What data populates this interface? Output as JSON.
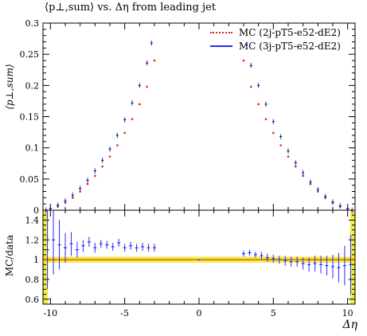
{
  "chart_data": [
    {
      "type": "scatter",
      "title": "⟨p⊥,sum⟩ vs. Δη from leading jet",
      "ylabel": "⟨p⊥,sum⟩",
      "xlabel": "",
      "xlim": [
        -10.5,
        10.5
      ],
      "ylim": [
        0,
        0.3
      ],
      "x_ticks": [
        -10,
        -5,
        0,
        5,
        10
      ],
      "y_ticks": [
        "0",
        "0.05",
        "0.1",
        "0.15",
        "0.2",
        "0.25",
        "0.3"
      ],
      "legend": {
        "placement": "top-right"
      },
      "series": [
        {
          "name": "MC (2j-pT5-e52-dE2)",
          "color": "#e41a1c",
          "style": "dotted",
          "x": [
            -10.3,
            -10.0,
            -9.5,
            -9.0,
            -8.5,
            -8.0,
            -7.5,
            -7.0,
            -6.5,
            -6.0,
            -5.5,
            -5.0,
            -4.5,
            -4.0,
            -3.5,
            -3.0,
            3.0,
            3.5,
            4.0,
            4.5,
            5.0,
            5.5,
            6.0,
            6.5,
            7.0,
            7.5,
            8.0,
            8.5,
            9.0,
            9.5,
            10.0,
            10.3
          ],
          "y": [
            0.0,
            0.002,
            0.006,
            0.012,
            0.02,
            0.03,
            0.042,
            0.055,
            0.07,
            0.086,
            0.104,
            0.124,
            0.146,
            0.17,
            0.198,
            0.24,
            0.24,
            0.198,
            0.17,
            0.146,
            0.124,
            0.104,
            0.086,
            0.07,
            0.055,
            0.042,
            0.03,
            0.02,
            0.012,
            0.006,
            0.002,
            0.0
          ]
        },
        {
          "name": "MC (3j-pT5-e52-dE2)",
          "color": "#2b2bff",
          "style": "errorbars",
          "x": [
            -10.3,
            -10.0,
            -9.5,
            -9.0,
            -8.5,
            -8.0,
            -7.5,
            -7.0,
            -6.5,
            -6.0,
            -5.5,
            -5.0,
            -4.5,
            -4.0,
            -3.5,
            -3.2,
            3.2,
            3.5,
            4.0,
            4.5,
            5.0,
            5.5,
            6.0,
            6.5,
            7.0,
            7.5,
            8.0,
            8.5,
            9.0,
            9.5,
            10.0,
            10.3
          ],
          "y": [
            0.0,
            0.003,
            0.008,
            0.015,
            0.024,
            0.035,
            0.048,
            0.063,
            0.08,
            0.098,
            0.12,
            0.145,
            0.172,
            0.2,
            0.236,
            0.268,
            0.265,
            0.232,
            0.2,
            0.17,
            0.142,
            0.118,
            0.095,
            0.076,
            0.06,
            0.045,
            0.033,
            0.022,
            0.013,
            0.007,
            0.003,
            0.0
          ]
        }
      ]
    },
    {
      "type": "line",
      "ylabel": "MC/data",
      "xlabel": "Δη",
      "xlim": [
        -10.5,
        10.5
      ],
      "ylim": [
        0.55,
        1.5
      ],
      "x_ticks": [
        "-10",
        "-5",
        "0",
        "5",
        "10"
      ],
      "y_ticks": [
        "0.6",
        "0.8",
        "1",
        "1.2",
        "1.4"
      ],
      "band_color": "#e8e800",
      "series": [
        {
          "name": "MC (2j-pT5-e52-dE2)",
          "color": "#e41a1c",
          "x": [
            -10.5,
            10.5
          ],
          "y": [
            1.0,
            1.0
          ]
        },
        {
          "name": "MC (3j-pT5-e52-dE2)",
          "color": "#2b2bff",
          "x": [
            -10.2,
            -9.8,
            -9.4,
            -9.0,
            -8.6,
            -8.2,
            -7.8,
            -7.4,
            -7.0,
            -6.6,
            -6.2,
            -5.8,
            -5.4,
            -5.0,
            -4.6,
            -4.2,
            -3.8,
            -3.4,
            -3.0,
            0.0,
            3.0,
            3.4,
            3.8,
            4.2,
            4.6,
            5.0,
            5.4,
            5.8,
            6.2,
            6.6,
            7.0,
            7.4,
            7.8,
            8.2,
            8.6,
            9.0,
            9.4,
            9.8,
            10.2
          ],
          "y": [
            1.1,
            1.2,
            1.15,
            1.12,
            1.16,
            1.1,
            1.14,
            1.18,
            1.12,
            1.16,
            1.15,
            1.13,
            1.17,
            1.12,
            1.14,
            1.12,
            1.13,
            1.12,
            1.12,
            1.0,
            1.06,
            1.07,
            1.05,
            1.04,
            1.02,
            1.01,
            1.0,
            0.99,
            0.98,
            0.98,
            0.96,
            0.95,
            0.96,
            0.95,
            0.94,
            0.93,
            0.92,
            0.94,
            0.95
          ],
          "err": [
            0.4,
            0.35,
            0.25,
            0.15,
            0.12,
            0.08,
            0.06,
            0.05,
            0.05,
            0.04,
            0.04,
            0.04,
            0.04,
            0.04,
            0.04,
            0.04,
            0.04,
            0.04,
            0.04,
            0.0,
            0.03,
            0.03,
            0.03,
            0.04,
            0.04,
            0.04,
            0.04,
            0.05,
            0.05,
            0.05,
            0.06,
            0.07,
            0.08,
            0.09,
            0.1,
            0.12,
            0.15,
            0.2,
            0.3
          ]
        }
      ]
    }
  ]
}
